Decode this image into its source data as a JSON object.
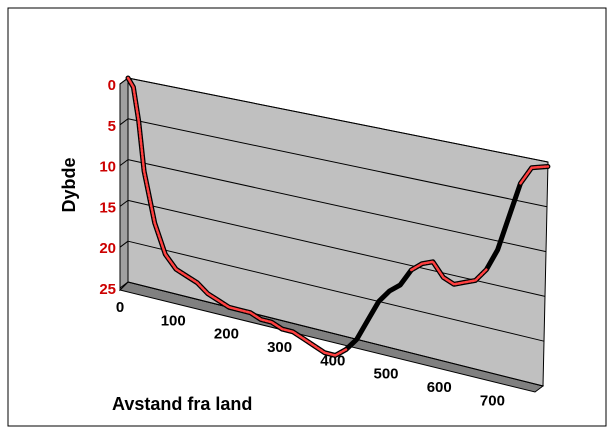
{
  "chart_data": {
    "type": "line",
    "title": "",
    "xlabel": "Avstand fra land",
    "ylabel": "Dybde",
    "xlim": [
      0,
      780
    ],
    "ylim": [
      25,
      0
    ],
    "x_ticks": [
      "0",
      "100",
      "200",
      "300",
      "400",
      "500",
      "600",
      "700"
    ],
    "y_ticks": [
      "0",
      "5",
      "10",
      "15",
      "20",
      "25"
    ],
    "grid": true,
    "legend": "none",
    "series": [
      {
        "x": [
          0,
          10,
          20,
          30,
          50,
          70,
          90,
          110,
          130,
          150,
          170,
          190,
          210,
          230,
          250,
          270,
          290,
          310,
          330,
          350,
          370,
          390,
          410,
          430,
          450,
          470,
          490,
          510,
          530,
          550,
          570,
          590,
          610,
          630,
          650,
          670,
          690,
          710,
          730,
          750,
          780
        ],
        "y": [
          0,
          1,
          5,
          11,
          17,
          20.5,
          22,
          22.5,
          23,
          24,
          24.5,
          25,
          25,
          25,
          25.5,
          25.5,
          26,
          26,
          26.5,
          27,
          27.5,
          27.5,
          26.5,
          25,
          22.5,
          20,
          18.5,
          17.5,
          15.5,
          14.5,
          14,
          15.5,
          16,
          15.5,
          15,
          13.5,
          11,
          7,
          3,
          1,
          0.5
        ]
      }
    ],
    "colors": {
      "plot_wall": "#c0c0c0",
      "floor": "#808080",
      "line": "#000000",
      "line_highlight": "#ff4040",
      "y_tick_color": "#cc0000"
    }
  }
}
